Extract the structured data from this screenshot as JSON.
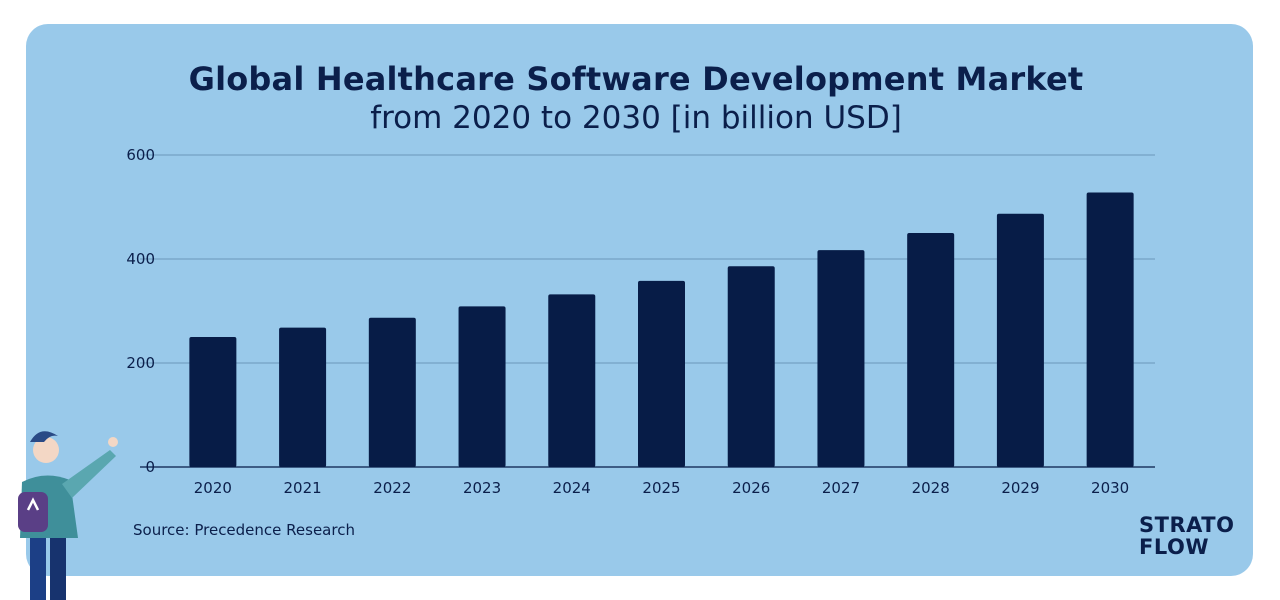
{
  "title": "Global Healthcare Software Development Market",
  "subtitle": "from 2020 to 2030 [in billion USD]",
  "source": "Source: Precedence Research",
  "brand": {
    "line1": "STRATO",
    "line2": "FLOW"
  },
  "colors": {
    "panel": "#99c9ea",
    "bar": "#071c47",
    "text": "#0b1f4b",
    "grid": "#5e86a8"
  },
  "chart_data": {
    "type": "bar",
    "categories": [
      "2020",
      "2021",
      "2022",
      "2023",
      "2024",
      "2025",
      "2026",
      "2027",
      "2028",
      "2029",
      "2030"
    ],
    "values": [
      250,
      268,
      287,
      309,
      332,
      358,
      386,
      417,
      450,
      487,
      528
    ],
    "title": "Global Healthcare Software Development Market",
    "subtitle": "from 2020 to 2030 [in billion USD]",
    "yticks": [
      0,
      200,
      400,
      600
    ],
    "ylim": [
      0,
      600
    ],
    "grid": true
  }
}
